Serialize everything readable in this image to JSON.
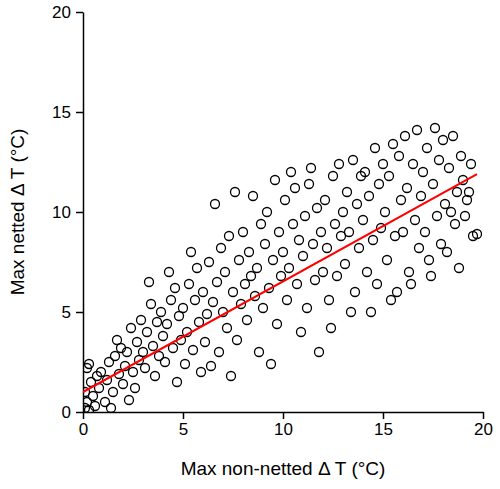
{
  "chart_data": {
    "type": "scatter",
    "x_label": "Max non-netted Δ T (°C)",
    "y_label": "Max netted Δ T (°C)",
    "xlim": [
      0,
      20
    ],
    "ylim": [
      0,
      20
    ],
    "xticks": [
      0,
      5,
      10,
      15,
      20
    ],
    "yticks": [
      0,
      5,
      10,
      15,
      20
    ],
    "series": [
      {
        "type": "scatter",
        "color": "#000000",
        "marker": "circle-open",
        "x": [
          0.1,
          0.2,
          0.3,
          0.1,
          0.4,
          0.5,
          0.2,
          0.6,
          0.8,
          0.9,
          0.3,
          0.7,
          1.1,
          1.2,
          1.3,
          1.5,
          1.6,
          1.8,
          1.9,
          1.4,
          1.7,
          2.0,
          2.1,
          2.2,
          2.4,
          2.5,
          2.6,
          2.7,
          2.8,
          2.9,
          2.3,
          3.0,
          3.1,
          3.2,
          3.4,
          3.5,
          3.6,
          3.7,
          3.8,
          3.9,
          3.3,
          4.0,
          4.1,
          4.2,
          4.4,
          4.5,
          4.6,
          4.7,
          4.8,
          4.9,
          4.3,
          5.0,
          5.1,
          5.2,
          5.3,
          5.5,
          5.6,
          5.7,
          5.8,
          5.9,
          5.4,
          6.0,
          6.1,
          6.2,
          6.3,
          6.5,
          6.6,
          6.7,
          6.8,
          6.9,
          6.4,
          7.0,
          7.1,
          7.2,
          7.3,
          7.5,
          7.6,
          7.7,
          7.8,
          7.9,
          7.4,
          8.0,
          8.1,
          8.2,
          8.3,
          8.5,
          8.6,
          8.7,
          8.8,
          8.9,
          8.4,
          9.0,
          9.1,
          9.2,
          9.3,
          9.5,
          9.6,
          9.7,
          9.8,
          9.9,
          9.4,
          10.0,
          10.1,
          10.2,
          10.3,
          10.5,
          10.6,
          10.7,
          10.8,
          10.9,
          10.4,
          11.0,
          11.1,
          11.2,
          11.3,
          11.5,
          11.6,
          11.7,
          11.8,
          11.9,
          11.4,
          12.0,
          12.1,
          12.2,
          12.3,
          12.5,
          12.6,
          12.7,
          12.8,
          12.9,
          12.4,
          13.0,
          13.1,
          13.2,
          13.3,
          13.5,
          13.6,
          13.7,
          13.8,
          13.9,
          13.4,
          14.0,
          14.1,
          14.2,
          14.3,
          14.5,
          14.6,
          14.7,
          14.8,
          14.9,
          14.4,
          15.0,
          15.1,
          15.2,
          15.3,
          15.5,
          15.6,
          15.7,
          15.8,
          15.9,
          15.4,
          16.0,
          16.1,
          16.2,
          16.3,
          16.5,
          16.6,
          16.7,
          16.8,
          16.9,
          16.4,
          17.0,
          17.1,
          17.2,
          17.3,
          17.5,
          17.6,
          17.7,
          17.8,
          17.9,
          17.4,
          18.0,
          18.1,
          18.2,
          18.3,
          18.5,
          18.6,
          18.7,
          18.8,
          18.9,
          18.4,
          19.0,
          19.1,
          19.2,
          19.4,
          19.5,
          19.7,
          19.3
        ],
        "values": [
          0.2,
          0.5,
          0.1,
          1.0,
          1.5,
          0.8,
          2.2,
          0.3,
          1.2,
          2.0,
          2.4,
          1.8,
          0.5,
          1.6,
          2.5,
          1.0,
          2.8,
          1.9,
          3.2,
          0.2,
          3.6,
          1.4,
          2.3,
          3.0,
          4.2,
          2.0,
          1.2,
          3.5,
          2.6,
          4.6,
          0.6,
          3.0,
          2.2,
          4.0,
          5.4,
          3.3,
          1.8,
          4.5,
          2.8,
          5.0,
          6.5,
          3.8,
          2.5,
          4.4,
          5.6,
          3.2,
          6.2,
          1.5,
          4.8,
          3.6,
          7.0,
          5.2,
          2.4,
          4.0,
          6.4,
          3.1,
          5.6,
          7.2,
          4.5,
          2.0,
          8.0,
          6.0,
          3.5,
          4.9,
          7.5,
          5.5,
          10.4,
          6.5,
          3.0,
          8.2,
          2.3,
          5.0,
          7.0,
          4.2,
          8.8,
          6.0,
          11.0,
          3.6,
          7.6,
          5.4,
          1.8,
          9.0,
          6.4,
          4.6,
          8.0,
          10.8,
          5.8,
          7.2,
          3.0,
          9.4,
          6.8,
          5.2,
          8.4,
          10.0,
          6.2,
          7.6,
          11.6,
          4.4,
          9.0,
          6.8,
          2.4,
          8.0,
          10.6,
          5.6,
          7.2,
          9.4,
          11.2,
          6.4,
          8.6,
          4.0,
          12.0,
          7.8,
          9.8,
          5.2,
          11.4,
          8.4,
          6.6,
          10.2,
          3.0,
          9.0,
          12.2,
          7.0,
          10.6,
          8.2,
          5.6,
          11.8,
          9.4,
          6.8,
          12.4,
          8.8,
          4.2,
          10.0,
          7.4,
          11.0,
          9.0,
          12.6,
          6.0,
          10.4,
          8.2,
          11.8,
          5.0,
          9.6,
          12.0,
          7.0,
          10.8,
          8.6,
          13.2,
          6.4,
          11.4,
          9.2,
          5.0,
          12.4,
          10.0,
          7.6,
          11.8,
          13.4,
          8.8,
          6.0,
          12.8,
          10.6,
          5.6,
          9.0,
          13.8,
          11.2,
          7.0,
          12.4,
          9.6,
          14.1,
          8.2,
          10.8,
          6.4,
          12.0,
          9.0,
          13.2,
          7.6,
          11.4,
          14.2,
          9.8,
          12.6,
          8.4,
          6.8,
          13.6,
          10.4,
          8.0,
          12.2,
          13.8,
          9.4,
          11.0,
          7.2,
          12.8,
          10.0,
          11.6,
          9.8,
          10.6,
          12.4,
          8.8,
          8.9,
          11.0
        ]
      },
      {
        "type": "line",
        "color": "#ff0000",
        "line_style": "solid",
        "x": [
          0,
          19.7
        ],
        "values": [
          1.0,
          11.9
        ]
      }
    ]
  }
}
